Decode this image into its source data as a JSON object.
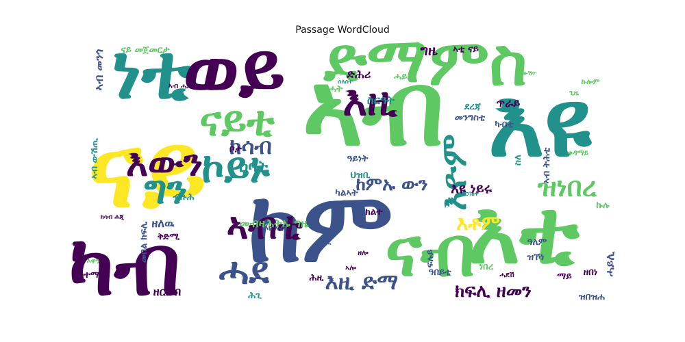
{
  "chart_data": {
    "type": "wordcloud",
    "title": "Passage WordCloud",
    "background": "#ffffff",
    "colormap": "viridis",
    "palette": [
      "#440154",
      "#3b528b",
      "#21918c",
      "#5ec962",
      "#fde725"
    ],
    "words": [
      {
        "text": "ናይ",
        "weight": 100,
        "color": "#fde725"
      },
      {
        "text": "እዩ",
        "weight": 92,
        "color": "#21918c"
      },
      {
        "text": "ኣብ",
        "weight": 100,
        "color": "#5ec962"
      },
      {
        "text": "ከም",
        "weight": 95,
        "color": "#3b528b"
      },
      {
        "text": "ካብ",
        "weight": 82,
        "color": "#440154"
      },
      {
        "text": "ነቲ",
        "weight": 74,
        "color": "#21918c"
      },
      {
        "text": "ወይ",
        "weight": 74,
        "color": "#440154"
      },
      {
        "text": "ድማ",
        "weight": 62,
        "color": "#5ec962"
      },
      {
        "text": "ምስ",
        "weight": 64,
        "color": "#5ec962"
      },
      {
        "text": "እቲ",
        "weight": 86,
        "color": "#5ec962"
      },
      {
        "text": "ናብ",
        "weight": 68,
        "color": "#5ec962"
      },
      {
        "text": "ናይቲ",
        "weight": 42,
        "color": "#5ec962"
      },
      {
        "text": "ኮይኑ",
        "weight": 42,
        "color": "#21918c"
      },
      {
        "text": "እዚ",
        "weight": 42,
        "color": "#440154"
      },
      {
        "text": "እውን",
        "weight": 38,
        "color": "#440154"
      },
      {
        "text": "ግን",
        "weight": 40,
        "color": "#21918c"
      },
      {
        "text": "እዮም",
        "weight": 36,
        "color": "#21918c"
      },
      {
        "text": "ኣብቲ",
        "weight": 38,
        "color": "#440154"
      },
      {
        "text": "ሓደ",
        "weight": 38,
        "color": "#3b528b"
      },
      {
        "text": "ዝነበረ",
        "weight": 28,
        "color": "#5ec962"
      },
      {
        "text": "ክሳብ",
        "weight": 24,
        "color": "#3b528b"
      },
      {
        "text": "ከምኡ ውን",
        "weight": 20,
        "color": "#3b528b"
      },
      {
        "text": "እዚ ድማ",
        "weight": 24,
        "color": "#3b528b"
      },
      {
        "text": "ክፍሊ ዘመን",
        "weight": 20,
        "color": "#440154"
      },
      {
        "text": "ሰባት",
        "weight": 18,
        "color": "#21918c"
      },
      {
        "text": "እቶም",
        "weight": 22,
        "color": "#fde725"
      },
      {
        "text": "እዩ ነይሩ",
        "weight": 16,
        "color": "#440154"
      },
      {
        "text": "ግዜ",
        "weight": 16,
        "color": "#440154"
      },
      {
        "text": "ስርዓት",
        "weight": 14,
        "color": "#21918c"
      },
      {
        "text": "ድሕሪ",
        "weight": 14,
        "color": "#440154"
      },
      {
        "text": "ኣብ መንጎ",
        "weight": 14,
        "color": "#3b528b"
      },
      {
        "text": "ናይ መጀመርታ",
        "weight": 12,
        "color": "#5ec962"
      },
      {
        "text": "ኣቲ ናይ",
        "weight": 12,
        "color": "#440154"
      },
      {
        "text": "ኣብ ውሽጢ",
        "weight": 12,
        "color": "#21918c"
      },
      {
        "text": "ቦታ",
        "weight": 12,
        "color": "#440154"
      },
      {
        "text": "ብዙሓት",
        "weight": 12,
        "color": "#5ec962"
      },
      {
        "text": "ጥራይ",
        "weight": 14,
        "color": "#440154"
      },
      {
        "text": "ካብቲ",
        "weight": 12,
        "color": "#3b528b"
      },
      {
        "text": "ደረጃ",
        "weight": 12,
        "color": "#21918c"
      },
      {
        "text": "ሓይሊ",
        "weight": 14,
        "color": "#3b528b"
      },
      {
        "text": "መንግስቲ",
        "weight": 12,
        "color": "#3b528b"
      },
      {
        "text": "ዓይነት",
        "weight": 12,
        "color": "#3b528b"
      },
      {
        "text": "ህዝቢ",
        "weight": 12,
        "color": "#21918c"
      },
      {
        "text": "ክልተ",
        "weight": 12,
        "color": "#440154"
      },
      {
        "text": "ካልኣት",
        "weight": 12,
        "color": "#3b528b"
      },
      {
        "text": "መብዛሕትኡ ግዜ",
        "weight": 14,
        "color": "#5ec962"
      },
      {
        "text": "ዘለዉ",
        "weight": 14,
        "color": "#3b528b"
      },
      {
        "text": "ቅድሚ",
        "weight": 12,
        "color": "#440154"
      },
      {
        "text": "ብዙሕ",
        "weight": 12,
        "color": "#21918c"
      },
      {
        "text": "ስለ",
        "weight": 12,
        "color": "#21918c"
      },
      {
        "text": "ኣብ ትሕቲ",
        "weight": 12,
        "color": "#3b528b"
      },
      {
        "text": "ኩሉ",
        "weight": 12,
        "color": "#5ec962"
      },
      {
        "text": "መበል ክፍሊ",
        "weight": 12,
        "color": "#3b528b"
      },
      {
        "text": "ከተማ",
        "weight": 12,
        "color": "#440154"
      },
      {
        "text": "ዘርከብ",
        "weight": 14,
        "color": "#440154"
      },
      {
        "text": "ሕጊ",
        "weight": 12,
        "color": "#21918c"
      },
      {
        "text": "ፍሉይ",
        "weight": 12,
        "color": "#3b528b"
      },
      {
        "text": "ዝኾነ",
        "weight": 12,
        "color": "#3b528b"
      },
      {
        "text": "ዓለም",
        "weight": 12,
        "color": "#3b528b"
      },
      {
        "text": "ዓበይቲ",
        "weight": 12,
        "color": "#3b528b"
      },
      {
        "text": "ነበረ",
        "weight": 12,
        "color": "#5ec962"
      },
      {
        "text": "ዘበነ",
        "weight": 12,
        "color": "#440154"
      },
      {
        "text": "ዝበዝሐ",
        "weight": 12,
        "color": "#3b528b"
      },
      {
        "text": "ሓደሽ",
        "weight": 10,
        "color": "#440154"
      },
      {
        "text": "ማይ",
        "weight": 12,
        "color": "#440154"
      },
      {
        "text": "ሓይሊ",
        "weight": 12,
        "color": "#5ec962"
      },
      {
        "text": "ሕዚ",
        "weight": 12,
        "color": "#440154"
      },
      {
        "text": "ዘሎ",
        "weight": 10,
        "color": "#440154"
      },
      {
        "text": "ኣሎ",
        "weight": 10,
        "color": "#440154"
      },
      {
        "text": "ዓቢ",
        "weight": 10,
        "color": "#3b528b"
      },
      {
        "text": "እዩ ኣቲ",
        "weight": 10,
        "color": "#3b528b"
      },
      {
        "text": "እዋን",
        "weight": 10,
        "color": "#5ec962"
      },
      {
        "text": "ኣብ ሓደ",
        "weight": 10,
        "color": "#440154"
      },
      {
        "text": "ጊዜ",
        "weight": 10,
        "color": "#5ec962"
      },
      {
        "text": "ኩሎም",
        "weight": 10,
        "color": "#5ec962"
      },
      {
        "text": "ቀዳማይ",
        "weight": 10,
        "color": "#5ec962"
      },
      {
        "text": "ክሳብ ሕጂ",
        "weight": 9,
        "color": "#440154"
      },
      {
        "text": "ኣርባዕተ",
        "weight": 9,
        "color": "#21918c"
      },
      {
        "text": "ሰለስተ",
        "weight": 9,
        "color": "#21918c"
      },
      {
        "text": "ሓሙሽተ",
        "weight": 9,
        "color": "#5ec962"
      }
    ]
  }
}
